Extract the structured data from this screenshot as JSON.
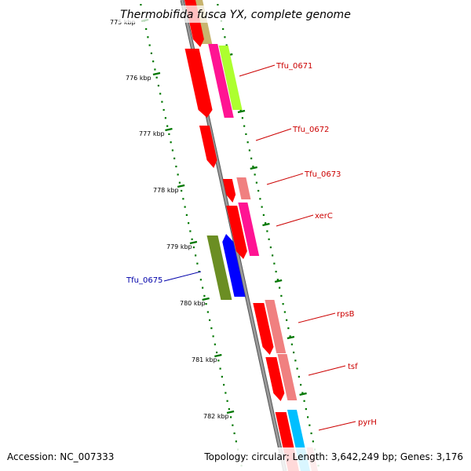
{
  "title": "Thermobifida fusca YX, complete genome",
  "footer": {
    "accession": "Accession: NC_007333",
    "summary": "Topology: circular; Length: 3,642,249 bp; Genes: 3,176"
  },
  "scale_labels": [
    "775 kbp",
    "776 kbp",
    "777 kbp",
    "778 kbp",
    "779 kbp",
    "780 kbp",
    "781 kbp",
    "782 kbp"
  ],
  "gene_labels": [
    {
      "name": "Tfu_0671",
      "color": "#cc0000"
    },
    {
      "name": "Tfu_0672",
      "color": "#cc0000"
    },
    {
      "name": "Tfu_0673",
      "color": "#cc0000"
    },
    {
      "name": "xerC",
      "color": "#cc0000"
    },
    {
      "name": "Tfu_0675",
      "color": "#0000aa"
    },
    {
      "name": "rpsB",
      "color": "#cc0000"
    },
    {
      "name": "tsf",
      "color": "#cc0000"
    },
    {
      "name": "pyrH",
      "color": "#cc0000"
    }
  ],
  "colors": {
    "cds_red": "#ff0000",
    "pink": "#f08080",
    "magenta": "#ff1493",
    "olive": "#c8b46e",
    "lime": "#adff2f",
    "dark_green": "#6b8e23",
    "blue": "#0000ff",
    "cyan": "#00bfff",
    "backbone": "#808080",
    "tick": "#007700"
  }
}
